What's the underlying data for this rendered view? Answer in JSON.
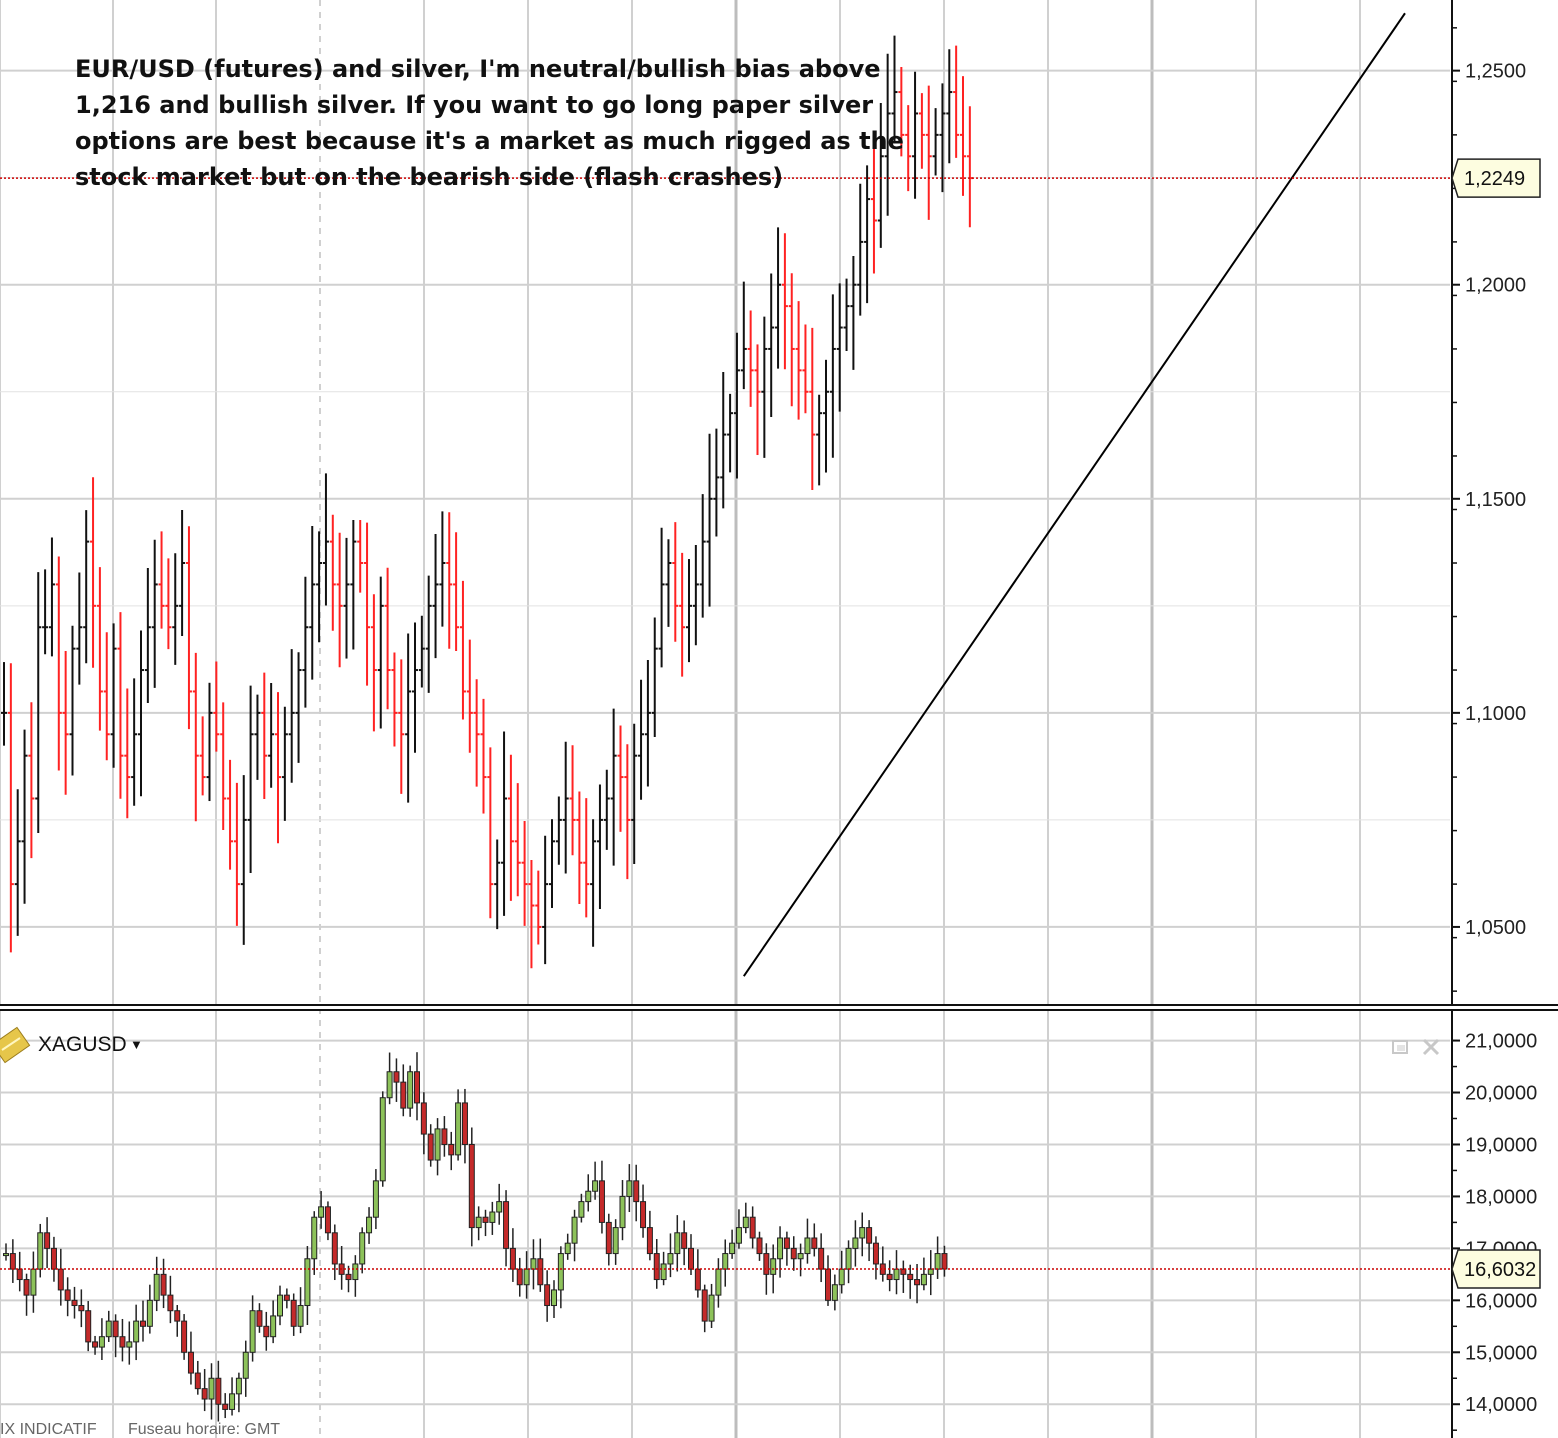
{
  "annotation": {
    "lines": [
      "EUR/USD (futures) and silver, I'm neutral/bullish bias above",
      "1,216 and bullish silver. If you want to go long paper silver",
      "options are best because it's a market as much rigged as the",
      "stock market but on the bearish side (flash crashes)"
    ]
  },
  "lower_panel": {
    "symbol": "XAGUSD",
    "dropdown_glyph": "▼"
  },
  "footer": {
    "left": "IX INDICATIF",
    "right": "Fuseau horaire: GMT"
  },
  "colors": {
    "up": "#111111",
    "down": "#ff2222",
    "candle_up_fill": "#8dc25a",
    "candle_down_fill": "#c42a2a",
    "price_line": "#cc0000",
    "grid": "#d0d0d0"
  },
  "chart_data": [
    {
      "type": "ohlc_bar",
      "series": [
        {
          "name": "EUR/USD (futures)"
        }
      ],
      "y_ticks": [
        "1,0500",
        "1,1000",
        "1,1500",
        "1,2000",
        "1,2500"
      ],
      "ylim": [
        1.032,
        1.2665
      ],
      "last_price": 1.2249,
      "last_price_label": "1,2249",
      "trendline": {
        "from_bar": 108,
        "from_value": 1.0385,
        "to_bar": 188,
        "to_value": 1.2249
      },
      "closes": [
        1.1,
        1.06,
        1.07,
        1.09,
        1.08,
        1.12,
        1.12,
        1.13,
        1.1,
        1.095,
        1.115,
        1.12,
        1.14,
        1.125,
        1.105,
        1.095,
        1.115,
        1.09,
        1.085,
        1.095,
        1.11,
        1.12,
        1.13,
        1.125,
        1.12,
        1.125,
        1.135,
        1.105,
        1.09,
        1.085,
        1.1,
        1.095,
        1.08,
        1.07,
        1.06,
        1.075,
        1.095,
        1.1,
        1.09,
        1.095,
        1.085,
        1.095,
        1.1,
        1.11,
        1.12,
        1.13,
        1.135,
        1.14,
        1.13,
        1.125,
        1.13,
        1.14,
        1.135,
        1.12,
        1.11,
        1.125,
        1.11,
        1.1,
        1.095,
        1.105,
        1.11,
        1.115,
        1.125,
        1.13,
        1.135,
        1.13,
        1.12,
        1.105,
        1.1,
        1.095,
        1.085,
        1.06,
        1.065,
        1.08,
        1.07,
        1.065,
        1.06,
        1.055,
        1.05,
        1.06,
        1.07,
        1.075,
        1.08,
        1.075,
        1.065,
        1.06,
        1.07,
        1.075,
        1.08,
        1.09,
        1.085,
        1.075,
        1.09,
        1.095,
        1.1,
        1.115,
        1.13,
        1.135,
        1.125,
        1.12,
        1.125,
        1.13,
        1.14,
        1.15,
        1.155,
        1.165,
        1.17,
        1.18,
        1.185,
        1.18,
        1.175,
        1.185,
        1.19,
        1.2,
        1.195,
        1.185,
        1.18,
        1.175,
        1.165,
        1.17,
        1.175,
        1.185,
        1.19,
        1.195,
        1.2,
        1.21,
        1.22,
        1.215,
        1.23,
        1.24,
        1.245,
        1.235,
        1.23,
        1.24,
        1.235,
        1.23,
        1.235,
        1.24,
        1.245,
        1.235,
        1.23,
        1.2249
      ],
      "hilo_pattern": "random_walk_from_closes"
    },
    {
      "type": "candlestick",
      "series": [
        {
          "name": "XAGUSD"
        }
      ],
      "y_ticks": [
        "14,0000",
        "15,0000",
        "16,0000",
        "17,0000",
        "18,0000",
        "19,0000",
        "20,0000",
        "21,0000"
      ],
      "ylim": [
        13.35,
        21.55
      ],
      "last_price": 16.6032,
      "last_price_label": "16,6032",
      "closes": [
        16.9,
        16.6,
        16.4,
        16.1,
        16.6,
        17.3,
        17.0,
        16.6,
        16.2,
        16.0,
        15.9,
        15.8,
        15.2,
        15.1,
        15.3,
        15.6,
        15.3,
        15.1,
        15.2,
        15.6,
        15.5,
        16.0,
        16.5,
        16.1,
        15.8,
        15.6,
        15.0,
        14.6,
        14.3,
        14.1,
        14.5,
        14.0,
        13.9,
        14.2,
        14.5,
        15.0,
        15.8,
        15.5,
        15.3,
        15.7,
        16.1,
        16.0,
        15.5,
        15.9,
        16.8,
        17.6,
        17.8,
        17.3,
        16.7,
        16.5,
        16.4,
        16.7,
        17.3,
        17.6,
        18.3,
        19.9,
        20.4,
        20.2,
        19.7,
        20.4,
        19.8,
        19.2,
        18.7,
        19.3,
        19.0,
        18.8,
        19.8,
        19.0,
        17.4,
        17.6,
        17.5,
        17.7,
        17.9,
        17.0,
        16.6,
        16.3,
        16.6,
        16.8,
        16.3,
        15.9,
        16.2,
        16.9,
        17.1,
        17.6,
        17.9,
        18.1,
        18.3,
        17.5,
        16.9,
        17.4,
        18.0,
        18.3,
        17.9,
        17.4,
        16.9,
        16.4,
        16.7,
        16.9,
        17.3,
        17.0,
        16.6,
        16.2,
        15.6,
        16.1,
        16.6,
        16.9,
        17.1,
        17.4,
        17.6,
        17.2,
        16.9,
        16.5,
        16.8,
        17.2,
        17.0,
        16.8,
        16.9,
        17.2,
        17.0,
        16.6,
        16.0,
        16.3,
        16.6,
        17.0,
        17.2,
        17.4,
        17.1,
        16.7,
        16.5,
        16.4,
        16.6,
        16.5,
        16.4,
        16.3,
        16.5,
        16.6,
        16.9,
        16.6032
      ]
    }
  ]
}
